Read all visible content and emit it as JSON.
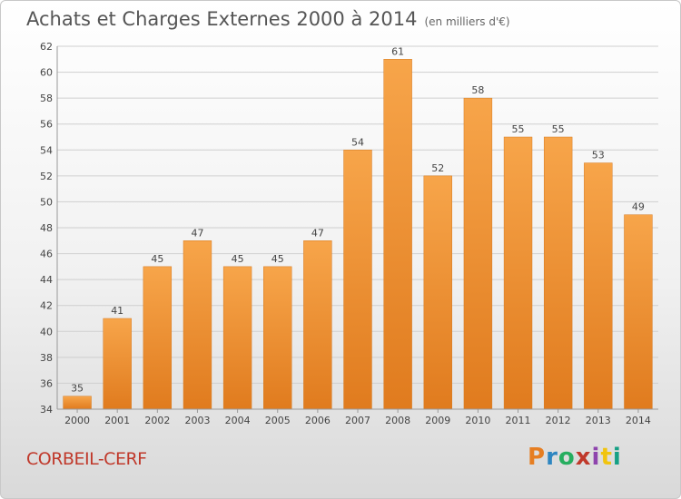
{
  "header": {
    "title": "Achats et Charges Externes 2000 à 2014",
    "subtitle": "(en milliers d'€)"
  },
  "footer": {
    "place": "CORBEIL-CERF",
    "brand": "Proxiti",
    "brand_colors": [
      "#e67e22",
      "#2e86c1",
      "#27ae60",
      "#c0392b",
      "#8e44ad",
      "#f1c40f",
      "#16a085"
    ]
  },
  "colors": {
    "bar_light": "#f7a54a",
    "bar_dark": "#e07b1e",
    "grid": "#cfcfcf",
    "title": "#555555",
    "place": "#c0392b"
  },
  "chart_data": {
    "type": "bar",
    "categories": [
      "2000",
      "2001",
      "2002",
      "2003",
      "2004",
      "2005",
      "2006",
      "2007",
      "2008",
      "2009",
      "2010",
      "2011",
      "2012",
      "2013",
      "2014"
    ],
    "values": [
      35,
      41,
      45,
      47,
      45,
      45,
      47,
      54,
      61,
      52,
      58,
      55,
      55,
      53,
      49
    ],
    "ylim": [
      34,
      62
    ],
    "yticks": [
      34,
      36,
      38,
      40,
      42,
      44,
      46,
      48,
      50,
      52,
      54,
      56,
      58,
      60,
      62
    ],
    "grid": true,
    "data_labels": true
  }
}
